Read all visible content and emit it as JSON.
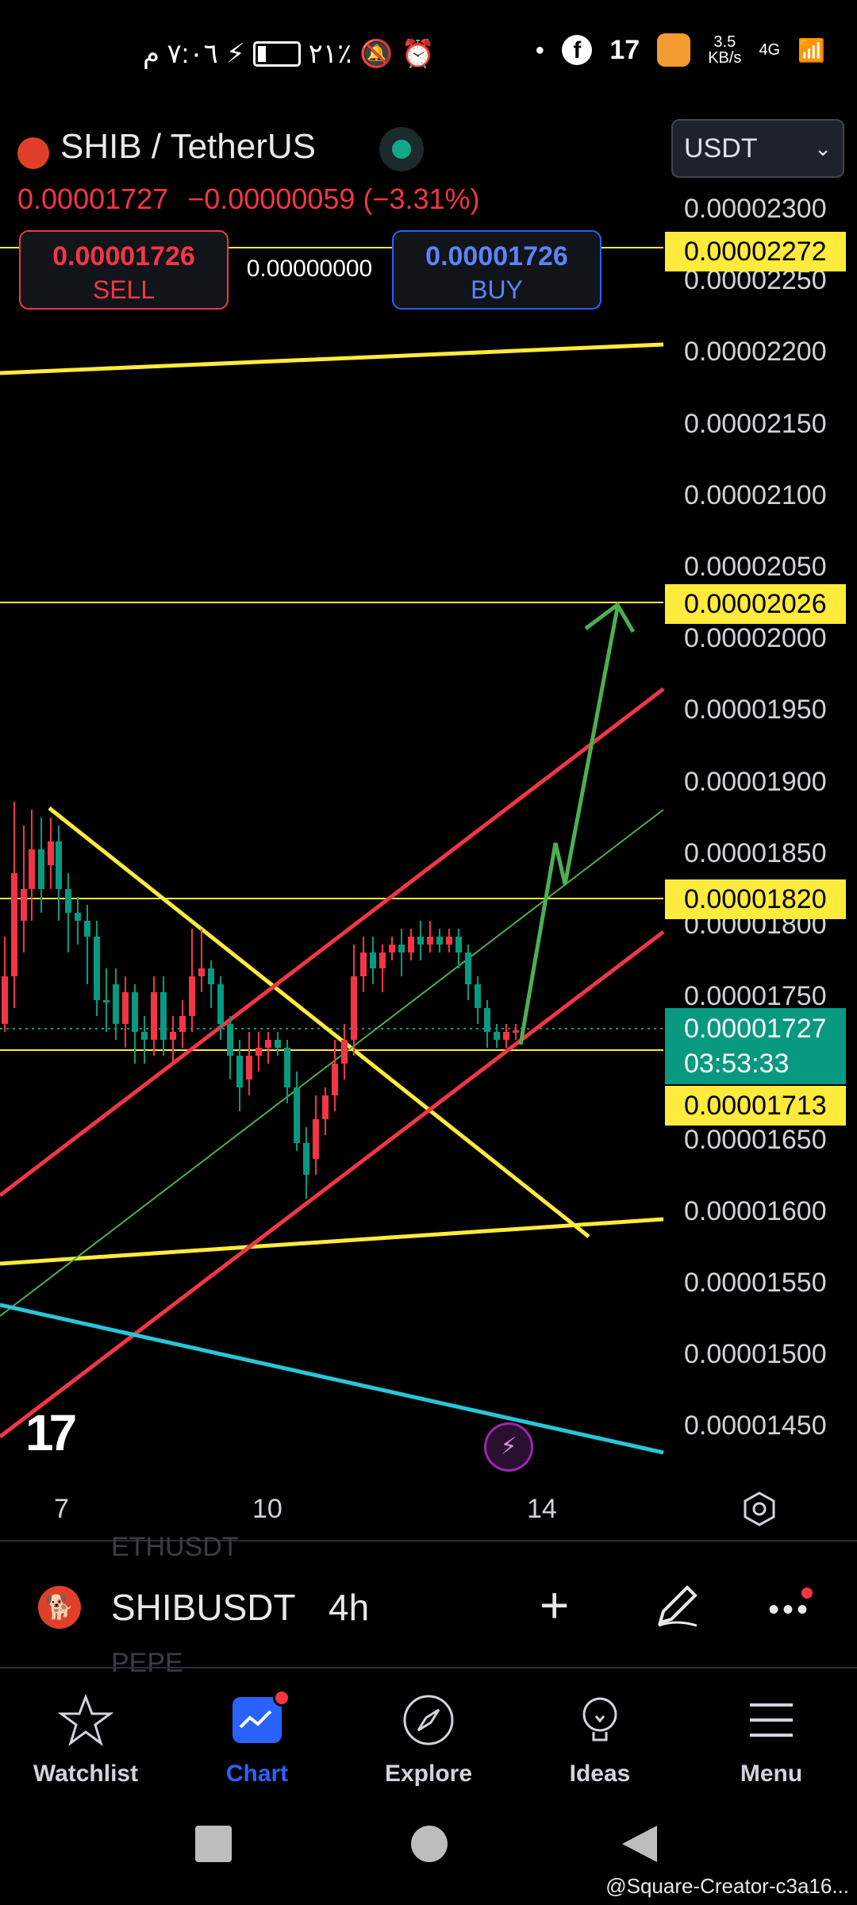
{
  "status_bar": {
    "time": "٧:٠٦ م",
    "battery": "٢١٪",
    "net_speed": "3.5",
    "net_unit": "KB/s",
    "network": "4G"
  },
  "header": {
    "symbol_title": "SHIB / TetherUS",
    "last_price": "0.00001727",
    "change": "−0.00000059 (−3.31%)",
    "sell_price": "0.00001726",
    "sell_label": "SELL",
    "spread": "0.00000000",
    "buy_price": "0.00001726",
    "buy_label": "BUY",
    "currency": "USDT"
  },
  "price_axis": {
    "ticks": [
      "0.00002300",
      "0.00002250",
      "0.00002200",
      "0.00002150",
      "0.00002100",
      "0.00002050",
      "0.00002000",
      "0.00001950",
      "0.00001900",
      "0.00001850",
      "0.00001800",
      "0.00001750",
      "0.00001650",
      "0.00001600",
      "0.00001550",
      "0.00001500",
      "0.00001450"
    ],
    "tag_top": "0.00002272",
    "tag_2026": "0.00002026",
    "tag_1820": "0.00001820",
    "tag_current_price": "0.00001727",
    "tag_current_time": "03:53:33",
    "tag_1713": "0.00001713"
  },
  "time_axis": {
    "ticks": [
      "7",
      "10",
      "14"
    ]
  },
  "chart_data": {
    "type": "candlestick",
    "symbol": "SHIBUSDT",
    "timeframe": "4h",
    "ylim": [
      1.42e-05,
      2.33e-05
    ],
    "current_price": 1.727e-05,
    "horizontal_levels": [
      2.272e-05,
      2.026e-05,
      1.82e-05,
      1.713e-05
    ],
    "x_ticks": [
      "7",
      "10",
      "14"
    ]
  },
  "symbol_bar": {
    "ghost_top": "ETHUSDT",
    "ghost_bottom": "PEPE",
    "symbol": "SHIBUSDT",
    "timeframe": "4h"
  },
  "nav": {
    "watchlist": "Watchlist",
    "chart": "Chart",
    "explore": "Explore",
    "ideas": "Ideas",
    "menu": "Menu"
  },
  "watermark": "@Square-Creator-c3a16..."
}
